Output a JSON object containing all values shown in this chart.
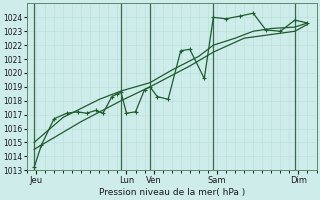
{
  "background_color": "#ceecea",
  "grid_color_minor": "#b8deda",
  "grid_color_major": "#a0c8c4",
  "line_color": "#1e5c30",
  "ylabel_text": "Pression niveau de la mer( hPa )",
  "ylim": [
    1013,
    1025
  ],
  "xlim": [
    0,
    16
  ],
  "yticks": [
    1013,
    1014,
    1015,
    1016,
    1017,
    1018,
    1019,
    1020,
    1021,
    1022,
    1023,
    1024
  ],
  "xtick_labels": [
    "Jeu",
    "Lun",
    "Ven",
    "Sam",
    "Dim"
  ],
  "xtick_positions": [
    0.5,
    5.5,
    7.0,
    10.5,
    15.0
  ],
  "x_vlines": [
    0.4,
    5.2,
    6.8,
    10.3,
    14.8
  ],
  "series1_x": [
    0.4,
    0.8,
    1.5,
    2.2,
    2.8,
    3.3,
    3.8,
    4.2,
    4.7,
    5.0,
    5.2,
    5.5,
    6.0,
    6.5,
    6.8,
    7.2,
    7.8,
    8.5,
    9.0,
    9.8,
    10.3,
    11.0,
    11.8,
    12.5,
    13.2,
    14.0,
    14.8,
    15.5
  ],
  "series1_y": [
    1013.2,
    1014.8,
    1016.7,
    1017.1,
    1017.2,
    1017.1,
    1017.3,
    1017.1,
    1018.3,
    1018.5,
    1018.6,
    1017.1,
    1017.2,
    1018.8,
    1019.0,
    1018.3,
    1018.1,
    1021.6,
    1021.7,
    1019.6,
    1024.0,
    1023.9,
    1024.1,
    1024.3,
    1023.1,
    1023.0,
    1023.8,
    1023.6
  ],
  "series2_x": [
    0.4,
    2.0,
    4.0,
    5.2,
    6.8,
    8.0,
    9.5,
    10.3,
    11.5,
    12.5,
    13.5,
    14.8,
    15.5
  ],
  "series2_y": [
    1015.0,
    1016.8,
    1018.1,
    1018.7,
    1019.3,
    1020.2,
    1021.2,
    1022.0,
    1022.5,
    1023.0,
    1023.2,
    1023.3,
    1023.6
  ],
  "series3_x": [
    0.4,
    3.0,
    5.2,
    6.8,
    9.0,
    10.3,
    12.0,
    14.8,
    15.5
  ],
  "series3_y": [
    1014.5,
    1016.5,
    1018.0,
    1019.0,
    1020.5,
    1021.5,
    1022.5,
    1023.0,
    1023.5
  ]
}
